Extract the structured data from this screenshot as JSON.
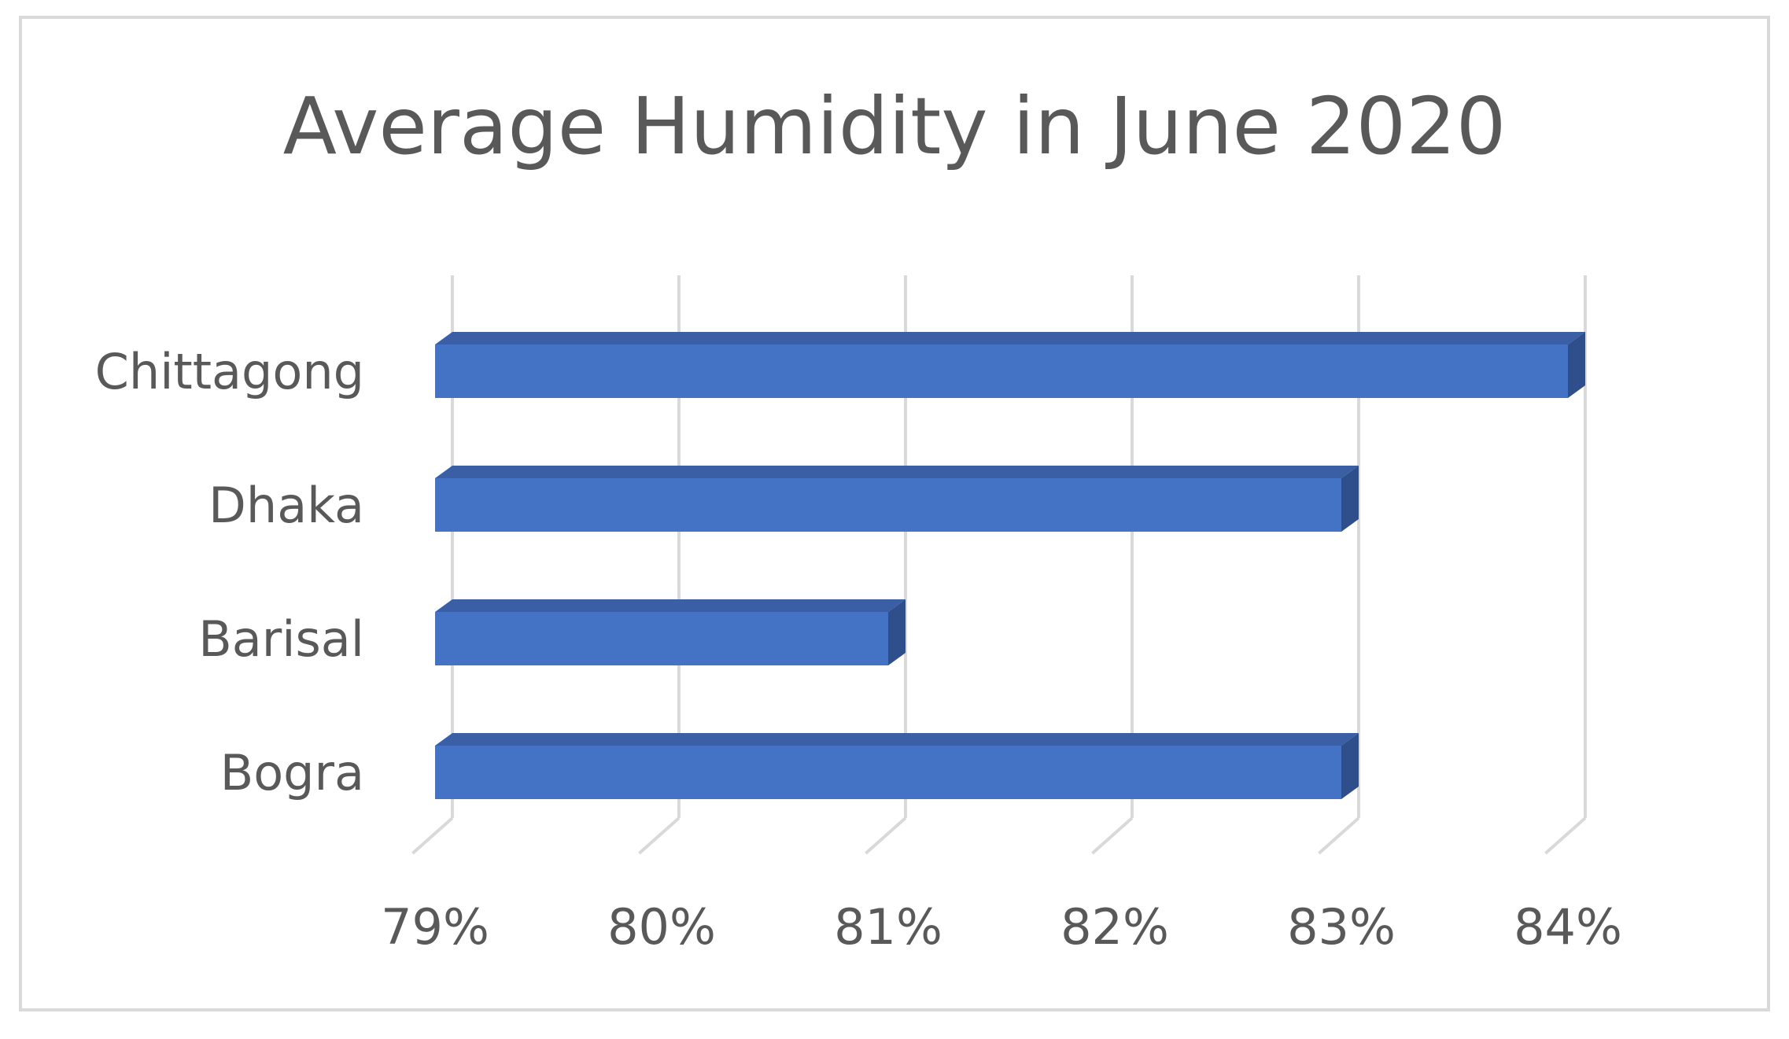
{
  "chart_data": {
    "type": "bar",
    "orientation": "horizontal",
    "style": "3d",
    "title": "Average Humidity in June 2020",
    "xlabel": "",
    "ylabel": "",
    "categories": [
      "Chittagong",
      "Dhaka",
      "Barisal",
      "Bogra"
    ],
    "values": [
      84,
      83,
      81,
      83
    ],
    "value_unit": "%",
    "xlim": [
      79,
      84
    ],
    "x_ticks": [
      "79%",
      "80%",
      "81%",
      "82%",
      "83%",
      "84%"
    ],
    "grid": "vertical",
    "legend": "none",
    "colors": {
      "bar_front": "#4472c4",
      "bar_top": "#3a5fa5",
      "bar_side": "#2f4f8c",
      "grid": "#d9d9d9",
      "text": "#595959",
      "border": "#d9d9d9"
    }
  }
}
